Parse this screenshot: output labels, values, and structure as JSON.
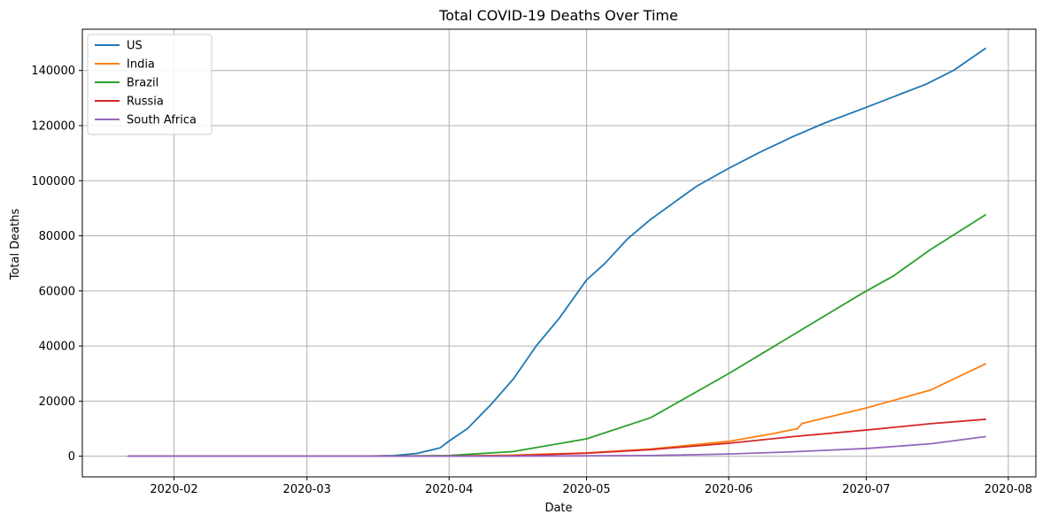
{
  "chart_data": {
    "type": "line",
    "title": "Total COVID-19 Deaths Over Time",
    "xlabel": "Date",
    "ylabel": "Total Deaths",
    "x_axis_type": "date",
    "xlim": [
      "2020-01-12",
      "2020-08-07"
    ],
    "ylim": [
      -7500,
      155000
    ],
    "x_ticks": [
      {
        "date": "2020-02-01",
        "label": "2020-02"
      },
      {
        "date": "2020-03-01",
        "label": "2020-03"
      },
      {
        "date": "2020-04-01",
        "label": "2020-04"
      },
      {
        "date": "2020-05-01",
        "label": "2020-05"
      },
      {
        "date": "2020-06-01",
        "label": "2020-06"
      },
      {
        "date": "2020-07-01",
        "label": "2020-07"
      },
      {
        "date": "2020-08-01",
        "label": "2020-08"
      }
    ],
    "y_ticks": [
      0,
      20000,
      40000,
      60000,
      80000,
      100000,
      120000,
      140000
    ],
    "grid": true,
    "legend_position": "top-left",
    "series": [
      {
        "name": "US",
        "color": "#1f77b4",
        "points": [
          [
            "2020-01-22",
            0
          ],
          [
            "2020-03-01",
            1
          ],
          [
            "2020-03-15",
            60
          ],
          [
            "2020-03-20",
            250
          ],
          [
            "2020-03-25",
            1000
          ],
          [
            "2020-03-30",
            3000
          ],
          [
            "2020-04-01",
            5500
          ],
          [
            "2020-04-05",
            10000
          ],
          [
            "2020-04-10",
            18500
          ],
          [
            "2020-04-15",
            28000
          ],
          [
            "2020-04-20",
            40000
          ],
          [
            "2020-04-25",
            50000
          ],
          [
            "2020-05-01",
            64000
          ],
          [
            "2020-05-05",
            70000
          ],
          [
            "2020-05-10",
            79000
          ],
          [
            "2020-05-15",
            86000
          ],
          [
            "2020-05-20",
            92000
          ],
          [
            "2020-05-25",
            98000
          ],
          [
            "2020-06-01",
            104500
          ],
          [
            "2020-06-08",
            110500
          ],
          [
            "2020-06-15",
            116000
          ],
          [
            "2020-06-22",
            121000
          ],
          [
            "2020-06-30",
            126000
          ],
          [
            "2020-07-07",
            130500
          ],
          [
            "2020-07-14",
            135000
          ],
          [
            "2020-07-20",
            140000
          ],
          [
            "2020-07-27",
            148000
          ]
        ]
      },
      {
        "name": "India",
        "color": "#ff7f0e",
        "points": [
          [
            "2020-01-22",
            0
          ],
          [
            "2020-03-10",
            0
          ],
          [
            "2020-04-01",
            50
          ],
          [
            "2020-04-15",
            400
          ],
          [
            "2020-05-01",
            1200
          ],
          [
            "2020-05-15",
            2600
          ],
          [
            "2020-06-01",
            5400
          ],
          [
            "2020-06-10",
            8000
          ],
          [
            "2020-06-16",
            10000
          ],
          [
            "2020-06-17",
            11900
          ],
          [
            "2020-07-01",
            17500
          ],
          [
            "2020-07-15",
            24000
          ],
          [
            "2020-07-27",
            33500
          ]
        ]
      },
      {
        "name": "Brazil",
        "color": "#2ca02c",
        "points": [
          [
            "2020-01-22",
            0
          ],
          [
            "2020-03-15",
            0
          ],
          [
            "2020-04-01",
            250
          ],
          [
            "2020-04-15",
            1700
          ],
          [
            "2020-05-01",
            6300
          ],
          [
            "2020-05-15",
            14000
          ],
          [
            "2020-06-01",
            30000
          ],
          [
            "2020-06-08",
            37000
          ],
          [
            "2020-06-15",
            44000
          ],
          [
            "2020-06-30",
            59000
          ],
          [
            "2020-07-07",
            65500
          ],
          [
            "2020-07-15",
            75000
          ],
          [
            "2020-07-27",
            87600
          ]
        ]
      },
      {
        "name": "Russia",
        "color": "#d62728",
        "points": [
          [
            "2020-01-22",
            0
          ],
          [
            "2020-03-20",
            0
          ],
          [
            "2020-04-15",
            200
          ],
          [
            "2020-05-01",
            1100
          ],
          [
            "2020-05-15",
            2400
          ],
          [
            "2020-06-01",
            4700
          ],
          [
            "2020-06-15",
            7100
          ],
          [
            "2020-07-01",
            9500
          ],
          [
            "2020-07-15",
            11800
          ],
          [
            "2020-07-27",
            13400
          ]
        ]
      },
      {
        "name": "South Africa",
        "color": "#9467bd",
        "points": [
          [
            "2020-01-22",
            0
          ],
          [
            "2020-03-25",
            0
          ],
          [
            "2020-04-15",
            30
          ],
          [
            "2020-05-15",
            250
          ],
          [
            "2020-06-01",
            800
          ],
          [
            "2020-06-15",
            1600
          ],
          [
            "2020-07-01",
            2800
          ],
          [
            "2020-07-15",
            4500
          ],
          [
            "2020-07-27",
            7100
          ]
        ]
      }
    ]
  }
}
